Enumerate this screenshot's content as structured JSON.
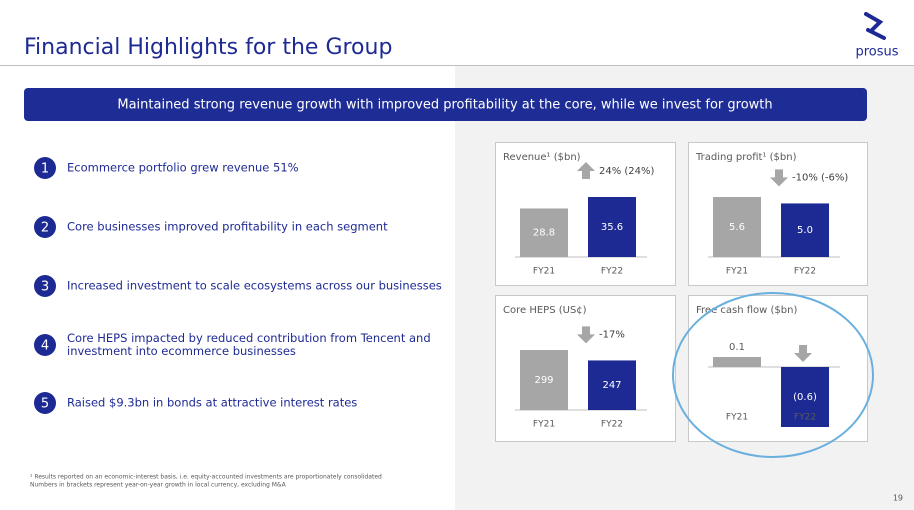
{
  "header": {
    "title": "Financial Highlights for the Group",
    "logo": "prosus"
  },
  "banner": "Maintained strong revenue growth with improved profitability at the core, while we invest for growth",
  "points": [
    {
      "number": 1,
      "text": [
        "Ecommerce portfolio grew revenue 51%"
      ]
    },
    {
      "number": 2,
      "text": [
        "Core businesses improved profitability in each segment"
      ]
    },
    {
      "number": 3,
      "text": [
        "Increased investment to scale ecosystems across our businesses"
      ]
    },
    {
      "number": 4,
      "text": [
        "Core HEPS impacted by reduced contribution from Tencent and",
        "investment into ecommerce businesses"
      ]
    },
    {
      "number": 5,
      "text": [
        "Raised $9.3bn in bonds at attractive interest rates"
      ]
    }
  ],
  "chart_data": [
    {
      "type": "bar",
      "title": "Revenue¹ ($bn)",
      "categories": [
        "FY21",
        "FY22"
      ],
      "values": [
        28.8,
        35.6
      ],
      "colors": [
        "#a6a6a6",
        "#1e2a94"
      ],
      "arrow": "up",
      "annotation": "24% (24%)"
    },
    {
      "type": "bar",
      "title": "Trading profit¹ ($bn)",
      "categories": [
        "FY21",
        "FY22"
      ],
      "values": [
        5.6,
        5.0
      ],
      "value_labels": [
        "5.6",
        "5.0"
      ],
      "colors": [
        "#a6a6a6",
        "#1e2a94"
      ],
      "arrow": "down",
      "annotation": "-10% (-6%)"
    },
    {
      "type": "bar",
      "title": "Core HEPS (US¢)",
      "categories": [
        "FY21",
        "FY22"
      ],
      "values": [
        299,
        247
      ],
      "colors": [
        "#a6a6a6",
        "#1e2a94"
      ],
      "arrow": "down",
      "annotation": "-17%"
    },
    {
      "type": "bar",
      "title": "Free cash flow ($bn)",
      "categories": [
        "FY21",
        "FY22"
      ],
      "values": [
        0.1,
        -0.6
      ],
      "value_labels": [
        "0.1",
        "(0.6)"
      ],
      "colors": [
        "#a6a6a6",
        "#1e2a94"
      ],
      "arrow": "down"
    }
  ],
  "footnote": [
    "¹ Results reported on an economic-interest basis, i.e. equity-accounted investments are proportionately consolidated",
    "Numbers in brackets represent year-on-year growth in local currency, excluding M&A"
  ],
  "page_number": 19
}
